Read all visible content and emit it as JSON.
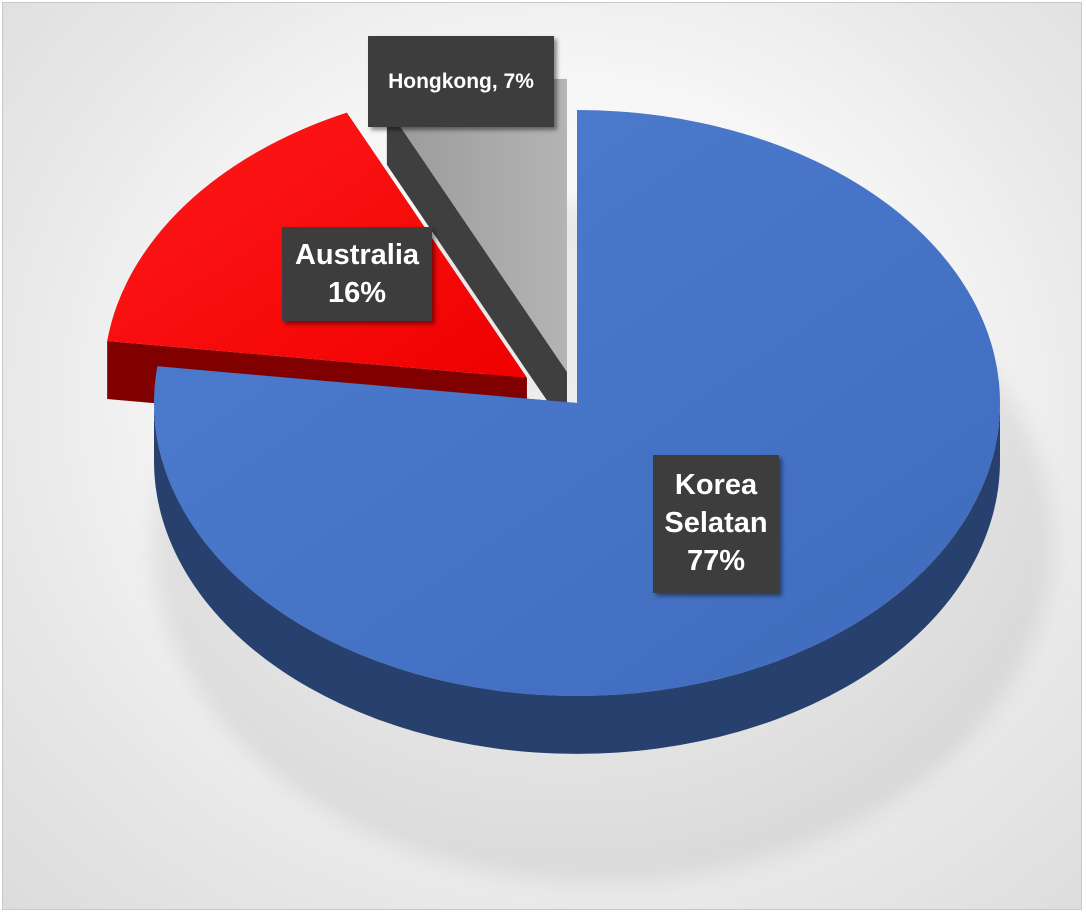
{
  "chart_data": {
    "type": "pie",
    "style": "3d-exploded",
    "title": "",
    "slices": [
      {
        "label": "Korea Selatan",
        "value": 77,
        "value_text": "77%",
        "color": "#4472C4",
        "side_color": "#27406E"
      },
      {
        "label": "Australia",
        "value": 16,
        "value_text": "16%",
        "color": "#FF0000",
        "side_color": "#800000"
      },
      {
        "label": "Hongkong",
        "value": 7,
        "value_text": "7%",
        "color": "#A5A5A5",
        "side_color": "#3F3F3F"
      }
    ],
    "data_labels": {
      "korea": {
        "line1": "Korea",
        "line2": "Selatan",
        "line3": "77%"
      },
      "australia": {
        "line1": "Australia",
        "line2": "16%"
      },
      "hongkong": {
        "text": "Hongkong, 7%"
      }
    },
    "legend": "none",
    "label_background": "#3D3D3D"
  }
}
